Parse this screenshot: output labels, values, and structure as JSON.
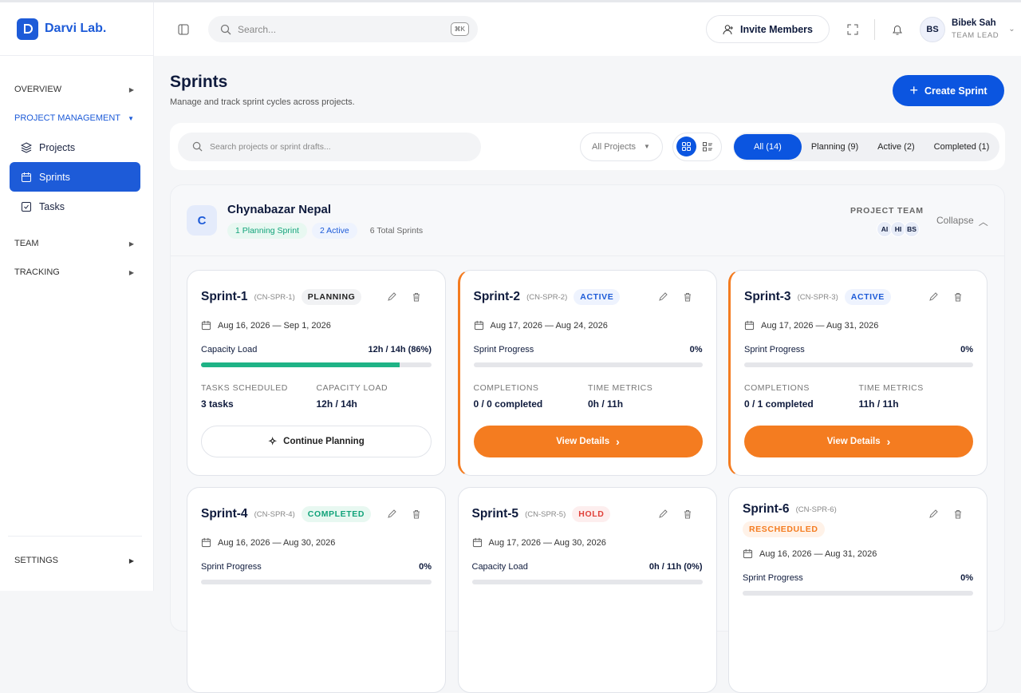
{
  "sidebar": {
    "brand": "Darvi Lab.",
    "menu": [
      {
        "label": "OVERVIEW"
      },
      {
        "label": "PROJECT MANAGEMENT",
        "items": [
          "Projects",
          "Sprints",
          "Tasks"
        ]
      },
      {
        "label": "TEAM"
      },
      {
        "label": "TRACKING"
      }
    ],
    "settings": "SETTINGS"
  },
  "header": {
    "search_placeholder": "Search...",
    "shortcut": "⌘K",
    "invite": "Invite Members",
    "user": {
      "initials": "BS",
      "name": "Bibek Sah",
      "role": "TEAM LEAD"
    }
  },
  "page": {
    "title": "Sprints",
    "subtitle": "Manage and track sprint cycles across projects.",
    "create": "Create Sprint"
  },
  "filters": {
    "search_placeholder": "Search projects or sprint drafts...",
    "project_select": "All Projects",
    "tabs": [
      "All (14)",
      "Planning (9)",
      "Active (2)",
      "Completed (1)"
    ]
  },
  "project": {
    "avatar": "C",
    "name": "Chynabazar Nepal",
    "badges": [
      "1 Planning Sprint",
      "2 Active",
      "6 Total Sprints"
    ],
    "team_label": "PROJECT TEAM",
    "members": [
      "AI",
      "HI",
      "BS"
    ],
    "collapse": "Collapse"
  },
  "sprints": [
    {
      "name": "Sprint-1",
      "code": "(CN-SPR-1)",
      "status": "PLANNING",
      "status_color": "#222222",
      "status_bg": "#f1f2f4",
      "dates": "Aug 16, 2026 — Sep 1, 2026",
      "metric_label": "Capacity Load",
      "metric_value": "12h / 14h (86%)",
      "progress": 86,
      "bar_color": "#1fb386",
      "stats": [
        {
          "label": "TASKS SCHEDULED",
          "value": "3 tasks"
        },
        {
          "label": "CAPACITY LOAD",
          "value": "12h / 14h"
        }
      ],
      "action": "Continue Planning"
    },
    {
      "name": "Sprint-2",
      "code": "(CN-SPR-2)",
      "status": "ACTIVE",
      "status_color": "#1d5bd8",
      "status_bg": "#eef3fe",
      "accent": "#f47c20",
      "dates": "Aug 17, 2026 — Aug 24, 2026",
      "metric_label": "Sprint Progress",
      "metric_value": "0%",
      "progress": 0,
      "bar_color": "#f47c20",
      "stats": [
        {
          "label": "COMPLETIONS",
          "value": "0 / 0 completed"
        },
        {
          "label": "TIME METRICS",
          "value": "0h / 11h"
        }
      ],
      "action": "View Details"
    },
    {
      "name": "Sprint-3",
      "code": "(CN-SPR-3)",
      "status": "ACTIVE",
      "status_color": "#1d5bd8",
      "status_bg": "#eef3fe",
      "accent": "#f47c20",
      "dates": "Aug 17, 2026 — Aug 31, 2026",
      "metric_label": "Sprint Progress",
      "metric_value": "0%",
      "progress": 0,
      "bar_color": "#f47c20",
      "stats": [
        {
          "label": "COMPLETIONS",
          "value": "0 / 1 completed"
        },
        {
          "label": "TIME METRICS",
          "value": "11h / 11h"
        }
      ],
      "action": "View Details"
    },
    {
      "name": "Sprint-4",
      "code": "(CN-SPR-4)",
      "status": "COMPLETED",
      "status_color": "#12a37a",
      "status_bg": "#e8f8f1",
      "dates": "Aug 16, 2026 — Aug 30, 2026",
      "metric_label": "Sprint Progress",
      "metric_value": "0%",
      "progress": 0,
      "bar_color": "#1fb386"
    },
    {
      "name": "Sprint-5",
      "code": "(CN-SPR-5)",
      "status": "HOLD",
      "status_color": "#e0413a",
      "status_bg": "#fdeeee",
      "dates": "Aug 17, 2026 — Aug 30, 2026",
      "metric_label": "Capacity Load",
      "metric_value": "0h / 11h (0%)",
      "progress": 0,
      "bar_color": "#1fb386"
    },
    {
      "name": "Sprint-6",
      "code": "(CN-SPR-6)",
      "status": "RESCHEDULED",
      "status_color": "#f47c20",
      "status_bg": "#fff2e8",
      "dates": "Aug 16, 2026 — Aug 31, 2026",
      "metric_label": "Sprint Progress",
      "metric_value": "0%",
      "progress": 0,
      "bar_color": "#1fb386"
    }
  ]
}
